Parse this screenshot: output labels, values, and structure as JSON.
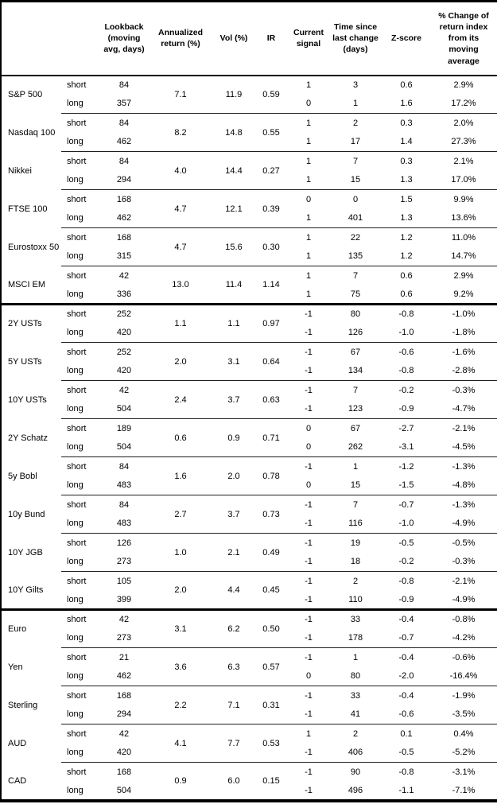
{
  "table": {
    "columns": {
      "lookback": "Lookback (moving avg, days)",
      "annualized_return": "Annualized return (%)",
      "vol": "Vol (%)",
      "ir": "IR",
      "current_signal": "Current signal",
      "time_since": "Time since last change (days)",
      "z_score": "Z-score",
      "pct_change": "% Change of return index from its moving average"
    },
    "row_labels": {
      "short": "short",
      "long": "long"
    },
    "groups": [
      {
        "name": "S&P 500",
        "annualized_return": "7.1",
        "vol": "11.9",
        "ir": "0.59",
        "section_end": false,
        "short": {
          "lookback": "84",
          "signal": "1",
          "time_since": "3",
          "z_score": "0.6",
          "pct_change": "2.9%"
        },
        "long": {
          "lookback": "357",
          "signal": "0",
          "time_since": "1",
          "z_score": "1.6",
          "pct_change": "17.2%"
        }
      },
      {
        "name": "Nasdaq 100",
        "annualized_return": "8.2",
        "vol": "14.8",
        "ir": "0.55",
        "section_end": false,
        "short": {
          "lookback": "84",
          "signal": "1",
          "time_since": "2",
          "z_score": "0.3",
          "pct_change": "2.0%"
        },
        "long": {
          "lookback": "462",
          "signal": "1",
          "time_since": "17",
          "z_score": "1.4",
          "pct_change": "27.3%"
        }
      },
      {
        "name": "Nikkei",
        "annualized_return": "4.0",
        "vol": "14.4",
        "ir": "0.27",
        "section_end": false,
        "short": {
          "lookback": "84",
          "signal": "1",
          "time_since": "7",
          "z_score": "0.3",
          "pct_change": "2.1%"
        },
        "long": {
          "lookback": "294",
          "signal": "1",
          "time_since": "15",
          "z_score": "1.3",
          "pct_change": "17.0%"
        }
      },
      {
        "name": "FTSE 100",
        "annualized_return": "4.7",
        "vol": "12.1",
        "ir": "0.39",
        "section_end": false,
        "short": {
          "lookback": "168",
          "signal": "0",
          "time_since": "0",
          "z_score": "1.5",
          "pct_change": "9.9%"
        },
        "long": {
          "lookback": "462",
          "signal": "1",
          "time_since": "401",
          "z_score": "1.3",
          "pct_change": "13.6%"
        }
      },
      {
        "name": "Eurostoxx 50",
        "annualized_return": "4.7",
        "vol": "15.6",
        "ir": "0.30",
        "section_end": false,
        "short": {
          "lookback": "168",
          "signal": "1",
          "time_since": "22",
          "z_score": "1.2",
          "pct_change": "11.0%"
        },
        "long": {
          "lookback": "315",
          "signal": "1",
          "time_since": "135",
          "z_score": "1.2",
          "pct_change": "14.7%"
        }
      },
      {
        "name": "MSCI EM",
        "annualized_return": "13.0",
        "vol": "11.4",
        "ir": "1.14",
        "section_end": true,
        "short": {
          "lookback": "42",
          "signal": "1",
          "time_since": "7",
          "z_score": "0.6",
          "pct_change": "2.9%"
        },
        "long": {
          "lookback": "336",
          "signal": "1",
          "time_since": "75",
          "z_score": "0.6",
          "pct_change": "9.2%"
        }
      },
      {
        "name": "2Y USTs",
        "annualized_return": "1.1",
        "vol": "1.1",
        "ir": "0.97",
        "section_end": false,
        "short": {
          "lookback": "252",
          "signal": "-1",
          "time_since": "80",
          "z_score": "-0.8",
          "pct_change": "-1.0%"
        },
        "long": {
          "lookback": "420",
          "signal": "-1",
          "time_since": "126",
          "z_score": "-1.0",
          "pct_change": "-1.8%"
        }
      },
      {
        "name": "5Y USTs",
        "annualized_return": "2.0",
        "vol": "3.1",
        "ir": "0.64",
        "section_end": false,
        "short": {
          "lookback": "252",
          "signal": "-1",
          "time_since": "67",
          "z_score": "-0.6",
          "pct_change": "-1.6%"
        },
        "long": {
          "lookback": "420",
          "signal": "-1",
          "time_since": "134",
          "z_score": "-0.8",
          "pct_change": "-2.8%"
        }
      },
      {
        "name": "10Y USTs",
        "annualized_return": "2.4",
        "vol": "3.7",
        "ir": "0.63",
        "section_end": false,
        "short": {
          "lookback": "42",
          "signal": "-1",
          "time_since": "7",
          "z_score": "-0.2",
          "pct_change": "-0.3%"
        },
        "long": {
          "lookback": "504",
          "signal": "-1",
          "time_since": "123",
          "z_score": "-0.9",
          "pct_change": "-4.7%"
        }
      },
      {
        "name": "2Y Schatz",
        "annualized_return": "0.6",
        "vol": "0.9",
        "ir": "0.71",
        "section_end": false,
        "short": {
          "lookback": "189",
          "signal": "0",
          "time_since": "67",
          "z_score": "-2.7",
          "pct_change": "-2.1%"
        },
        "long": {
          "lookback": "504",
          "signal": "0",
          "time_since": "262",
          "z_score": "-3.1",
          "pct_change": "-4.5%"
        }
      },
      {
        "name": "5y Bobl",
        "annualized_return": "1.6",
        "vol": "2.0",
        "ir": "0.78",
        "section_end": false,
        "short": {
          "lookback": "84",
          "signal": "-1",
          "time_since": "1",
          "z_score": "-1.2",
          "pct_change": "-1.3%"
        },
        "long": {
          "lookback": "483",
          "signal": "0",
          "time_since": "15",
          "z_score": "-1.5",
          "pct_change": "-4.8%"
        }
      },
      {
        "name": "10y Bund",
        "annualized_return": "2.7",
        "vol": "3.7",
        "ir": "0.73",
        "section_end": false,
        "short": {
          "lookback": "84",
          "signal": "-1",
          "time_since": "7",
          "z_score": "-0.7",
          "pct_change": "-1.3%"
        },
        "long": {
          "lookback": "483",
          "signal": "-1",
          "time_since": "116",
          "z_score": "-1.0",
          "pct_change": "-4.9%"
        }
      },
      {
        "name": "10Y JGB",
        "annualized_return": "1.0",
        "vol": "2.1",
        "ir": "0.49",
        "section_end": false,
        "short": {
          "lookback": "126",
          "signal": "-1",
          "time_since": "19",
          "z_score": "-0.5",
          "pct_change": "-0.5%"
        },
        "long": {
          "lookback": "273",
          "signal": "-1",
          "time_since": "18",
          "z_score": "-0.2",
          "pct_change": "-0.3%"
        }
      },
      {
        "name": "10Y Gilts",
        "annualized_return": "2.0",
        "vol": "4.4",
        "ir": "0.45",
        "section_end": true,
        "short": {
          "lookback": "105",
          "signal": "-1",
          "time_since": "2",
          "z_score": "-0.8",
          "pct_change": "-2.1%"
        },
        "long": {
          "lookback": "399",
          "signal": "-1",
          "time_since": "110",
          "z_score": "-0.9",
          "pct_change": "-4.9%"
        }
      },
      {
        "name": "Euro",
        "annualized_return": "3.1",
        "vol": "6.2",
        "ir": "0.50",
        "section_end": false,
        "short": {
          "lookback": "42",
          "signal": "-1",
          "time_since": "33",
          "z_score": "-0.4",
          "pct_change": "-0.8%"
        },
        "long": {
          "lookback": "273",
          "signal": "-1",
          "time_since": "178",
          "z_score": "-0.7",
          "pct_change": "-4.2%"
        }
      },
      {
        "name": "Yen",
        "annualized_return": "3.6",
        "vol": "6.3",
        "ir": "0.57",
        "section_end": false,
        "short": {
          "lookback": "21",
          "signal": "-1",
          "time_since": "1",
          "z_score": "-0.4",
          "pct_change": "-0.6%"
        },
        "long": {
          "lookback": "462",
          "signal": "0",
          "time_since": "80",
          "z_score": "-2.0",
          "pct_change": "-16.4%"
        }
      },
      {
        "name": "Sterling",
        "annualized_return": "2.2",
        "vol": "7.1",
        "ir": "0.31",
        "section_end": false,
        "short": {
          "lookback": "168",
          "signal": "-1",
          "time_since": "33",
          "z_score": "-0.4",
          "pct_change": "-1.9%"
        },
        "long": {
          "lookback": "294",
          "signal": "-1",
          "time_since": "41",
          "z_score": "-0.6",
          "pct_change": "-3.5%"
        }
      },
      {
        "name": "AUD",
        "annualized_return": "4.1",
        "vol": "7.7",
        "ir": "0.53",
        "section_end": false,
        "short": {
          "lookback": "42",
          "signal": "1",
          "time_since": "2",
          "z_score": "0.1",
          "pct_change": "0.4%"
        },
        "long": {
          "lookback": "420",
          "signal": "-1",
          "time_since": "406",
          "z_score": "-0.5",
          "pct_change": "-5.2%"
        }
      },
      {
        "name": "CAD",
        "annualized_return": "0.9",
        "vol": "6.0",
        "ir": "0.15",
        "section_end": false,
        "short": {
          "lookback": "168",
          "signal": "-1",
          "time_since": "90",
          "z_score": "-0.8",
          "pct_change": "-3.1%"
        },
        "long": {
          "lookback": "504",
          "signal": "-1",
          "time_since": "496",
          "z_score": "-1.1",
          "pct_change": "-7.1%"
        }
      }
    ]
  }
}
